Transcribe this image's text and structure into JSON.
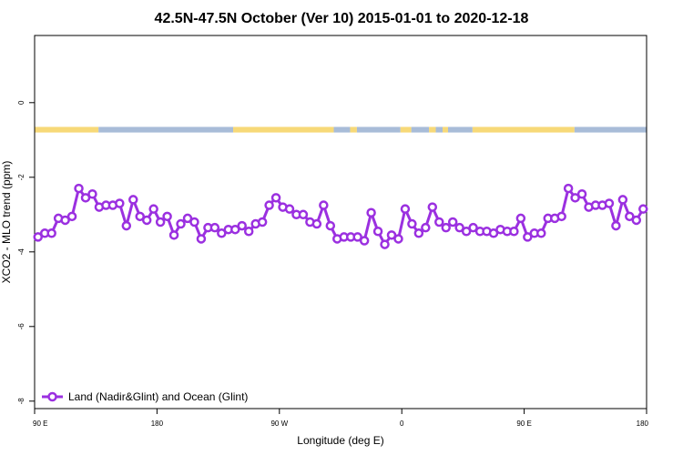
{
  "chart_data": {
    "type": "line",
    "title": "42.5N-47.5N October (Ver 10)   2015-01-01 to 2020-12-18",
    "xlabel": "Longitude (deg E)",
    "ylabel": "XCO2 - MLO trend (ppm)",
    "x_ticks": [
      {
        "value": 90,
        "label": "90 E"
      },
      {
        "value": 180,
        "label": "180"
      },
      {
        "value": 270,
        "label": "90 W"
      },
      {
        "value": 360,
        "label": "0"
      },
      {
        "value": 450,
        "label": "90 E"
      },
      {
        "value": 540,
        "label": "180"
      }
    ],
    "y_ticks": [
      {
        "value": 0,
        "label": "0"
      },
      {
        "value": -2,
        "label": "-2"
      },
      {
        "value": -4,
        "label": "-4"
      },
      {
        "value": -6,
        "label": "-6"
      },
      {
        "value": -8,
        "label": "-8"
      }
    ],
    "xlim": [
      90,
      540
    ],
    "ylim": [
      -8.2,
      1.8
    ],
    "grid": false,
    "legend_position": "bottom-left",
    "series": [
      {
        "name": "Land (Nadir&Glint) and Ocean (Glint)",
        "color": "#9b30e0",
        "x": [
          92.5,
          97.5,
          102.5,
          107.5,
          112.5,
          117.5,
          122.5,
          127.5,
          132.5,
          137.5,
          142.5,
          147.5,
          152.5,
          157.5,
          162.5,
          167.5,
          172.5,
          177.5,
          182.5,
          187.5,
          192.5,
          197.5,
          202.5,
          207.5,
          212.5,
          217.5,
          222.5,
          227.5,
          232.5,
          237.5,
          242.5,
          247.5,
          252.5,
          257.5,
          262.5,
          267.5,
          272.5,
          277.5,
          282.5,
          287.5,
          292.5,
          297.5,
          302.5,
          307.5,
          312.5,
          317.5,
          322.5,
          327.5,
          332.5,
          337.5,
          342.5,
          347.5,
          352.5,
          357.5,
          362.5,
          367.5,
          372.5,
          377.5,
          382.5,
          387.5,
          392.5,
          397.5,
          402.5,
          407.5,
          412.5,
          417.5,
          422.5,
          427.5,
          432.5,
          437.5,
          442.5,
          447.5,
          452.5,
          457.5,
          462.5,
          467.5,
          472.5,
          477.5,
          482.5,
          487.5,
          492.5,
          497.5,
          502.5,
          507.5,
          512.5,
          517.5,
          522.5,
          527.5,
          532.5,
          537.5
        ],
        "y": [
          -3.6,
          -3.5,
          -3.5,
          -3.1,
          -3.15,
          -3.05,
          -2.3,
          -2.55,
          -2.45,
          -2.8,
          -2.75,
          -2.75,
          -2.7,
          -3.3,
          -2.6,
          -3.05,
          -3.15,
          -2.85,
          -3.2,
          -3.05,
          -3.55,
          -3.25,
          -3.1,
          -3.2,
          -3.65,
          -3.35,
          -3.35,
          -3.5,
          -3.4,
          -3.4,
          -3.3,
          -3.45,
          -3.25,
          -3.2,
          -2.75,
          -2.55,
          -2.8,
          -2.85,
          -3.0,
          -3.0,
          -3.2,
          -3.25,
          -2.75,
          -3.3,
          -3.65,
          -3.6,
          -3.6,
          -3.6,
          -3.7,
          -2.95,
          -3.45,
          -3.8,
          -3.55,
          -3.65,
          -2.85,
          -3.25,
          -3.5,
          -3.35,
          -2.8,
          -3.2,
          -3.35,
          -3.2,
          -3.35,
          -3.45,
          -3.35,
          -3.45,
          -3.45,
          -3.5,
          -3.4,
          -3.45,
          -3.45,
          -3.1,
          -3.6,
          -3.5,
          -3.5,
          -3.1,
          -3.1,
          -3.05,
          -2.3,
          -2.55,
          -2.45,
          -2.8,
          -2.75,
          -2.75,
          -2.7,
          -3.3,
          -2.6,
          -3.05,
          -3.15,
          -2.85
        ]
      }
    ],
    "surface_band": {
      "y_range": [
        -0.65,
        -0.8
      ],
      "colors": {
        "land": "#f7d978",
        "ocean": "#a8bcd8"
      },
      "segments": [
        {
          "from": 90,
          "to": 137,
          "type": "land"
        },
        {
          "from": 137,
          "to": 236,
          "type": "ocean"
        },
        {
          "from": 236,
          "to": 310,
          "type": "land"
        },
        {
          "from": 310,
          "to": 322,
          "type": "ocean"
        },
        {
          "from": 322,
          "to": 327,
          "type": "land"
        },
        {
          "from": 327,
          "to": 359,
          "type": "ocean"
        },
        {
          "from": 359,
          "to": 367,
          "type": "land"
        },
        {
          "from": 367,
          "to": 380,
          "type": "ocean"
        },
        {
          "from": 380,
          "to": 385,
          "type": "land"
        },
        {
          "from": 385,
          "to": 390,
          "type": "ocean"
        },
        {
          "from": 390,
          "to": 394,
          "type": "land"
        },
        {
          "from": 394,
          "to": 412,
          "type": "ocean"
        },
        {
          "from": 412,
          "to": 487,
          "type": "land"
        },
        {
          "from": 487,
          "to": 540,
          "type": "ocean"
        }
      ]
    }
  }
}
